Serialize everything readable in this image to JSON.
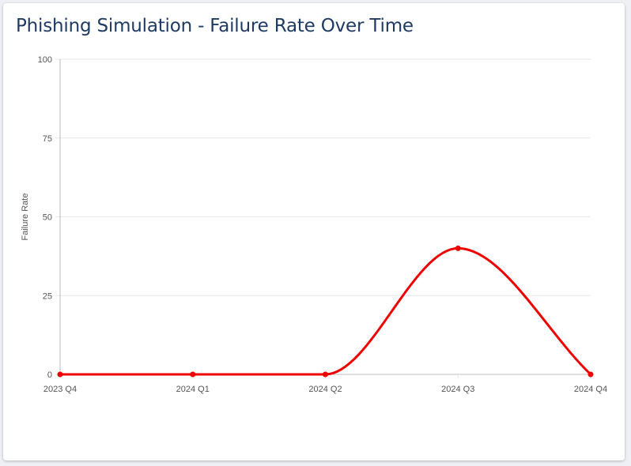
{
  "header": {
    "title": "Phishing Simulation - Failure Rate Over Time"
  },
  "chart_data": {
    "type": "line",
    "categories": [
      "2023 Q4",
      "2024 Q1",
      "2024 Q2",
      "2024 Q3",
      "2024 Q4"
    ],
    "series": [
      {
        "values": [
          0,
          0,
          0,
          40,
          0
        ],
        "color": "#ee0000"
      }
    ],
    "title": "Phishing Simulation - Failure Rate Over Time",
    "xlabel": "",
    "ylabel": "Failure Rate",
    "ylim": [
      0,
      100
    ],
    "yticks": [
      0,
      25,
      50,
      75,
      100
    ],
    "grid": true,
    "legend": "none",
    "smooth": true
  }
}
